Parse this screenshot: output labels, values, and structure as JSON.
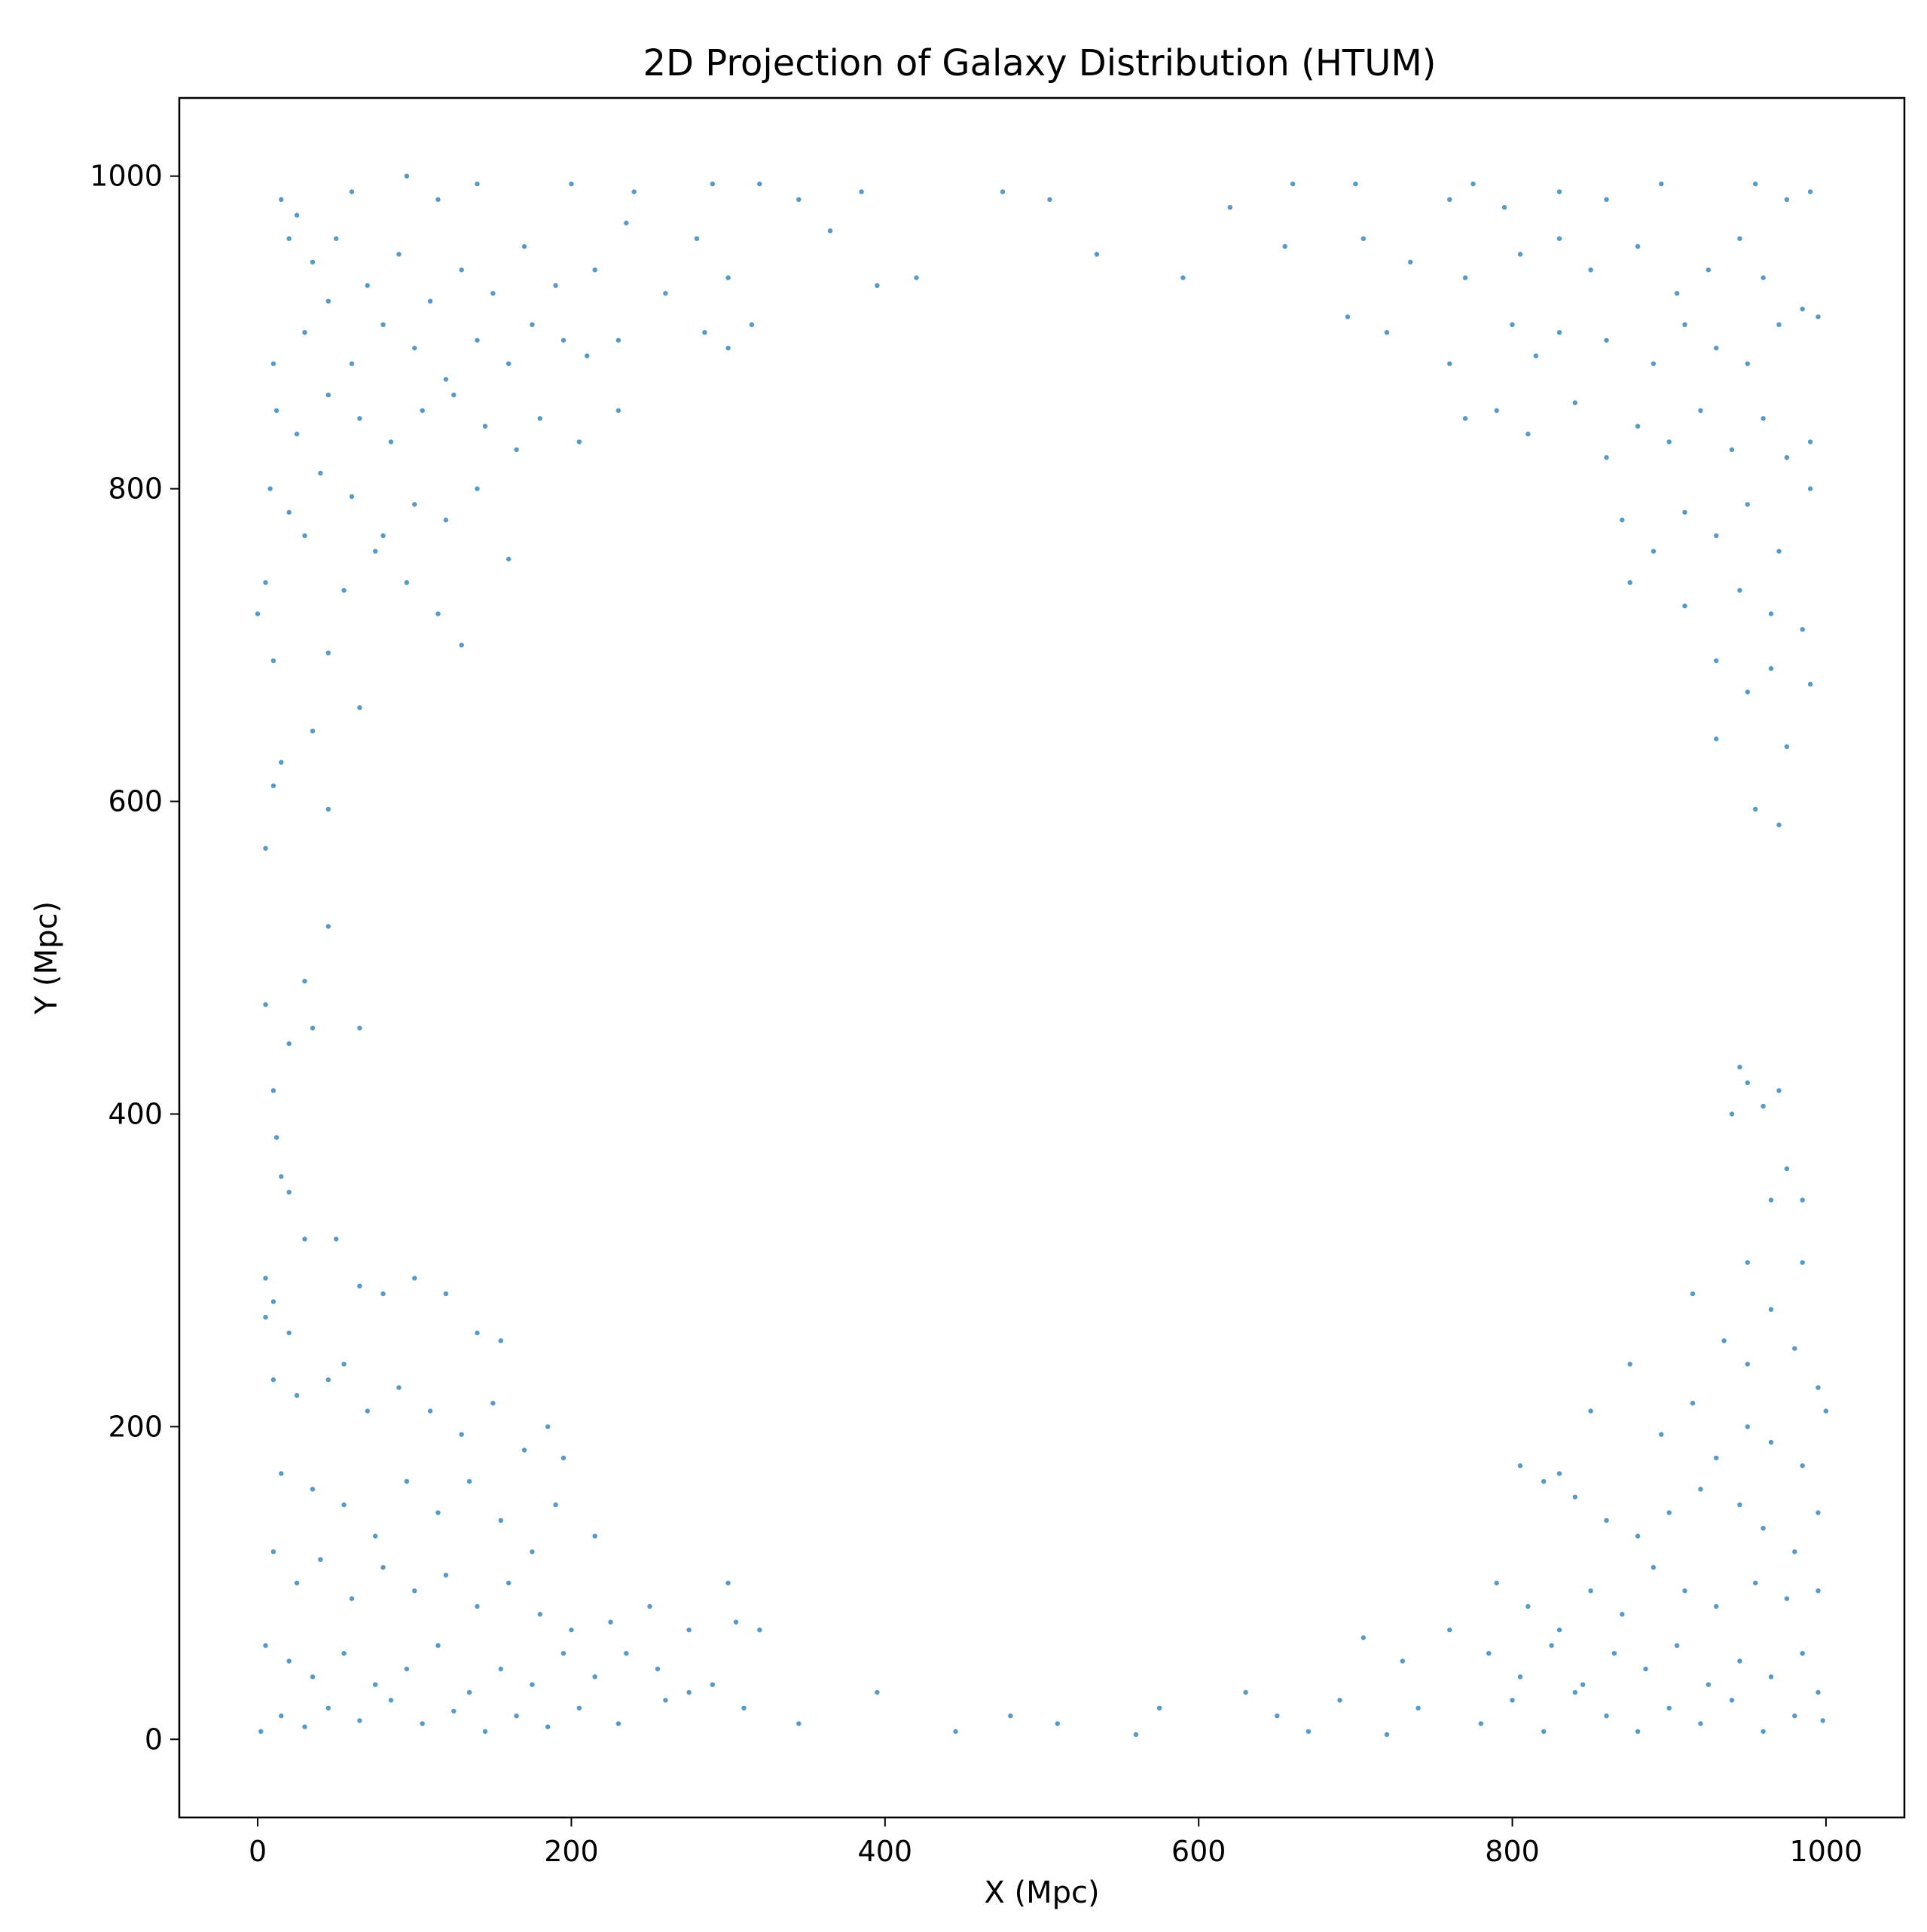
{
  "chart_data": {
    "type": "scatter",
    "title": "2D Projection of Galaxy Distribution (HTUM)",
    "xlabel": "X (Mpc)",
    "ylabel": "Y (Mpc)",
    "xlim": [
      -50,
      1050
    ],
    "ylim": [
      -50,
      1050
    ],
    "xticks": [
      0,
      200,
      400,
      600,
      800,
      1000
    ],
    "yticks": [
      0,
      200,
      400,
      600,
      800,
      1000
    ],
    "grid": false,
    "legend": "none",
    "marker_color": "#1f77b4",
    "points": [
      [
        60,
        990
      ],
      [
        25,
        975
      ],
      [
        15,
        985
      ],
      [
        95,
        1000
      ],
      [
        115,
        985
      ],
      [
        140,
        995
      ],
      [
        200,
        995
      ],
      [
        240,
        990
      ],
      [
        290,
        995
      ],
      [
        320,
        995
      ],
      [
        345,
        985
      ],
      [
        385,
        990
      ],
      [
        475,
        990
      ],
      [
        505,
        985
      ],
      [
        620,
        980
      ],
      [
        660,
        995
      ],
      [
        700,
        995
      ],
      [
        760,
        985
      ],
      [
        775,
        995
      ],
      [
        795,
        980
      ],
      [
        830,
        990
      ],
      [
        860,
        985
      ],
      [
        895,
        995
      ],
      [
        955,
        995
      ],
      [
        975,
        985
      ],
      [
        990,
        990
      ],
      [
        20,
        960
      ],
      [
        35,
        945
      ],
      [
        50,
        960
      ],
      [
        70,
        930
      ],
      [
        90,
        950
      ],
      [
        110,
        920
      ],
      [
        130,
        940
      ],
      [
        150,
        925
      ],
      [
        170,
        955
      ],
      [
        190,
        930
      ],
      [
        215,
        940
      ],
      [
        235,
        970
      ],
      [
        260,
        925
      ],
      [
        280,
        960
      ],
      [
        300,
        935
      ],
      [
        315,
        905
      ],
      [
        365,
        965
      ],
      [
        395,
        930
      ],
      [
        420,
        935
      ],
      [
        535,
        950
      ],
      [
        590,
        935
      ],
      [
        655,
        955
      ],
      [
        705,
        960
      ],
      [
        735,
        945
      ],
      [
        770,
        935
      ],
      [
        805,
        950
      ],
      [
        830,
        960
      ],
      [
        850,
        940
      ],
      [
        880,
        955
      ],
      [
        905,
        925
      ],
      [
        925,
        940
      ],
      [
        945,
        960
      ],
      [
        960,
        935
      ],
      [
        985,
        915
      ],
      [
        10,
        880
      ],
      [
        30,
        900
      ],
      [
        45,
        920
      ],
      [
        60,
        880
      ],
      [
        80,
        905
      ],
      [
        100,
        890
      ],
      [
        120,
        870
      ],
      [
        140,
        895
      ],
      [
        160,
        880
      ],
      [
        175,
        905
      ],
      [
        195,
        895
      ],
      [
        210,
        885
      ],
      [
        230,
        895
      ],
      [
        285,
        900
      ],
      [
        300,
        890
      ],
      [
        695,
        910
      ],
      [
        720,
        900
      ],
      [
        760,
        880
      ],
      [
        800,
        905
      ],
      [
        815,
        885
      ],
      [
        830,
        900
      ],
      [
        860,
        895
      ],
      [
        890,
        880
      ],
      [
        910,
        905
      ],
      [
        930,
        890
      ],
      [
        950,
        880
      ],
      [
        970,
        905
      ],
      [
        995,
        910
      ],
      [
        12,
        850
      ],
      [
        25,
        835
      ],
      [
        45,
        860
      ],
      [
        65,
        845
      ],
      [
        85,
        830
      ],
      [
        105,
        850
      ],
      [
        125,
        860
      ],
      [
        145,
        840
      ],
      [
        165,
        825
      ],
      [
        180,
        845
      ],
      [
        205,
        830
      ],
      [
        230,
        850
      ],
      [
        770,
        845
      ],
      [
        790,
        850
      ],
      [
        810,
        835
      ],
      [
        840,
        855
      ],
      [
        860,
        820
      ],
      [
        880,
        840
      ],
      [
        900,
        830
      ],
      [
        920,
        850
      ],
      [
        940,
        825
      ],
      [
        960,
        845
      ],
      [
        975,
        820
      ],
      [
        990,
        830
      ],
      [
        8,
        800
      ],
      [
        20,
        785
      ],
      [
        40,
        810
      ],
      [
        60,
        795
      ],
      [
        80,
        770
      ],
      [
        100,
        790
      ],
      [
        120,
        780
      ],
      [
        140,
        800
      ],
      [
        160,
        755
      ],
      [
        870,
        780
      ],
      [
        890,
        760
      ],
      [
        910,
        785
      ],
      [
        930,
        770
      ],
      [
        950,
        790
      ],
      [
        970,
        760
      ],
      [
        990,
        800
      ],
      [
        5,
        740
      ],
      [
        30,
        770
      ],
      [
        55,
        735
      ],
      [
        75,
        760
      ],
      [
        95,
        740
      ],
      [
        115,
        720
      ],
      [
        10,
        690
      ],
      [
        45,
        695
      ],
      [
        130,
        700
      ],
      [
        875,
        740
      ],
      [
        910,
        725
      ],
      [
        945,
        735
      ],
      [
        965,
        720
      ],
      [
        985,
        710
      ],
      [
        0,
        720
      ],
      [
        15,
        625
      ],
      [
        35,
        645
      ],
      [
        10,
        610
      ],
      [
        5,
        570
      ],
      [
        45,
        595
      ],
      [
        65,
        660
      ],
      [
        930,
        690
      ],
      [
        950,
        670
      ],
      [
        965,
        685
      ],
      [
        990,
        675
      ],
      [
        930,
        640
      ],
      [
        955,
        595
      ],
      [
        975,
        635
      ],
      [
        970,
        585
      ],
      [
        45,
        520
      ],
      [
        5,
        470
      ],
      [
        30,
        485
      ],
      [
        20,
        445
      ],
      [
        35,
        455
      ],
      [
        65,
        455
      ],
      [
        10,
        415
      ],
      [
        12,
        385
      ],
      [
        15,
        360
      ],
      [
        20,
        350
      ],
      [
        945,
        430
      ],
      [
        950,
        420
      ],
      [
        940,
        400
      ],
      [
        960,
        405
      ],
      [
        970,
        415
      ],
      [
        975,
        365
      ],
      [
        965,
        345
      ],
      [
        985,
        345
      ],
      [
        950,
        305
      ],
      [
        985,
        305
      ],
      [
        5,
        295
      ],
      [
        10,
        280
      ],
      [
        30,
        320
      ],
      [
        50,
        320
      ],
      [
        65,
        290
      ],
      [
        80,
        285
      ],
      [
        100,
        295
      ],
      [
        120,
        285
      ],
      [
        140,
        260
      ],
      [
        155,
        255
      ],
      [
        5,
        270
      ],
      [
        20,
        260
      ],
      [
        915,
        285
      ],
      [
        935,
        255
      ],
      [
        950,
        240
      ],
      [
        965,
        275
      ],
      [
        980,
        250
      ],
      [
        995,
        225
      ],
      [
        10,
        230
      ],
      [
        25,
        220
      ],
      [
        45,
        230
      ],
      [
        55,
        240
      ],
      [
        70,
        210
      ],
      [
        90,
        225
      ],
      [
        110,
        210
      ],
      [
        130,
        195
      ],
      [
        150,
        215
      ],
      [
        170,
        185
      ],
      [
        185,
        200
      ],
      [
        195,
        180
      ],
      [
        215,
        130
      ],
      [
        830,
        170
      ],
      [
        850,
        210
      ],
      [
        875,
        240
      ],
      [
        895,
        195
      ],
      [
        915,
        215
      ],
      [
        930,
        180
      ],
      [
        950,
        200
      ],
      [
        965,
        190
      ],
      [
        985,
        175
      ],
      [
        1000,
        210
      ],
      [
        15,
        170
      ],
      [
        35,
        160
      ],
      [
        55,
        150
      ],
      [
        75,
        130
      ],
      [
        95,
        165
      ],
      [
        115,
        145
      ],
      [
        135,
        165
      ],
      [
        155,
        140
      ],
      [
        175,
        120
      ],
      [
        190,
        150
      ],
      [
        805,
        175
      ],
      [
        820,
        165
      ],
      [
        840,
        155
      ],
      [
        860,
        140
      ],
      [
        880,
        130
      ],
      [
        900,
        145
      ],
      [
        920,
        160
      ],
      [
        945,
        150
      ],
      [
        960,
        135
      ],
      [
        980,
        120
      ],
      [
        995,
        145
      ],
      [
        10,
        120
      ],
      [
        25,
        100
      ],
      [
        40,
        115
      ],
      [
        60,
        90
      ],
      [
        80,
        110
      ],
      [
        100,
        95
      ],
      [
        120,
        105
      ],
      [
        140,
        85
      ],
      [
        160,
        100
      ],
      [
        180,
        80
      ],
      [
        200,
        70
      ],
      [
        225,
        75
      ],
      [
        250,
        85
      ],
      [
        275,
        70
      ],
      [
        300,
        100
      ],
      [
        320,
        70
      ],
      [
        790,
        100
      ],
      [
        810,
        85
      ],
      [
        830,
        70
      ],
      [
        850,
        95
      ],
      [
        870,
        80
      ],
      [
        890,
        110
      ],
      [
        910,
        95
      ],
      [
        930,
        85
      ],
      [
        955,
        100
      ],
      [
        975,
        90
      ],
      [
        995,
        95
      ],
      [
        5,
        60
      ],
      [
        20,
        50
      ],
      [
        35,
        40
      ],
      [
        55,
        55
      ],
      [
        75,
        35
      ],
      [
        95,
        45
      ],
      [
        115,
        60
      ],
      [
        135,
        30
      ],
      [
        155,
        45
      ],
      [
        175,
        35
      ],
      [
        195,
        55
      ],
      [
        215,
        40
      ],
      [
        235,
        55
      ],
      [
        255,
        45
      ],
      [
        275,
        30
      ],
      [
        305,
        75
      ],
      [
        395,
        30
      ],
      [
        705,
        65
      ],
      [
        730,
        50
      ],
      [
        760,
        70
      ],
      [
        785,
        55
      ],
      [
        805,
        40
      ],
      [
        825,
        60
      ],
      [
        845,
        35
      ],
      [
        865,
        55
      ],
      [
        885,
        45
      ],
      [
        905,
        60
      ],
      [
        925,
        35
      ],
      [
        945,
        50
      ],
      [
        965,
        40
      ],
      [
        985,
        55
      ],
      [
        995,
        30
      ],
      [
        2,
        5
      ],
      [
        15,
        15
      ],
      [
        30,
        8
      ],
      [
        45,
        20
      ],
      [
        65,
        12
      ],
      [
        85,
        25
      ],
      [
        105,
        10
      ],
      [
        125,
        18
      ],
      [
        145,
        5
      ],
      [
        165,
        15
      ],
      [
        185,
        8
      ],
      [
        205,
        20
      ],
      [
        230,
        10
      ],
      [
        260,
        25
      ],
      [
        290,
        35
      ],
      [
        310,
        20
      ],
      [
        345,
        10
      ],
      [
        445,
        5
      ],
      [
        480,
        15
      ],
      [
        510,
        10
      ],
      [
        560,
        3
      ],
      [
        575,
        20
      ],
      [
        630,
        30
      ],
      [
        650,
        15
      ],
      [
        670,
        5
      ],
      [
        690,
        25
      ],
      [
        720,
        3
      ],
      [
        740,
        20
      ],
      [
        780,
        10
      ],
      [
        800,
        25
      ],
      [
        820,
        5
      ],
      [
        840,
        30
      ],
      [
        860,
        15
      ],
      [
        880,
        5
      ],
      [
        900,
        20
      ],
      [
        920,
        10
      ],
      [
        940,
        25
      ],
      [
        960,
        5
      ],
      [
        980,
        15
      ],
      [
        998,
        12
      ]
    ]
  }
}
